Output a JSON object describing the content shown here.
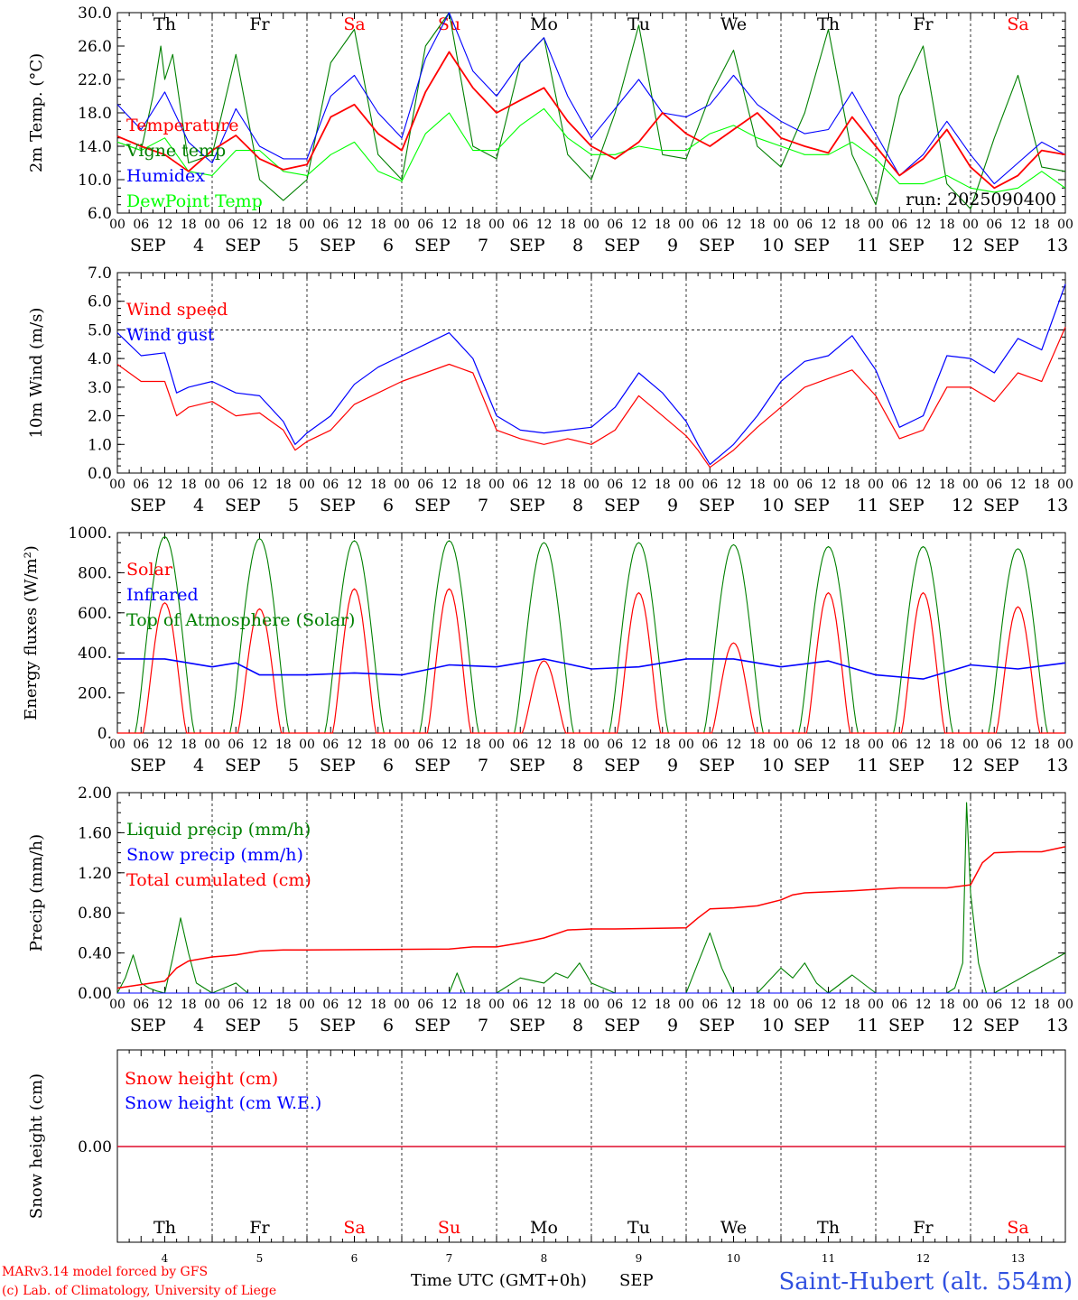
{
  "meridian": {
    "days": [
      "4",
      "5",
      "6",
      "7",
      "8",
      "9",
      "10",
      "11",
      "12",
      "13"
    ],
    "month": "SEP",
    "weekdays": [
      "Th",
      "Fr",
      "Sa",
      "Su",
      "Mo",
      "Tu",
      "We",
      "Th",
      "Fr",
      "Sa"
    ],
    "weekend_index": [
      2,
      3,
      9
    ],
    "hour_ticks": [
      "00",
      "06",
      "12",
      "18"
    ],
    "last_tick": "00"
  },
  "colors": {
    "red": "#ff0000",
    "dark_green": "#008000",
    "blue": "#0000ff",
    "light_green": "#00ff00",
    "frame": "#000000",
    "weekend": "#ff0000",
    "station": "#3050e0"
  },
  "footer": {
    "model": "MARv3.14 model forced by GFS",
    "copyright": "(c) Lab. of Climatology, University of Liege",
    "xlabel": "Time UTC (GMT+0h)",
    "month_label": "SEP",
    "station": "Saint-Hubert (alt. 554m)"
  },
  "chart_data": [
    {
      "id": "temperature",
      "type": "line",
      "ylabel": "2m Temp. (°C)",
      "ylim": [
        6,
        30
      ],
      "yticks": [
        "6.0",
        "10.0",
        "14.0",
        "18.0",
        "22.0",
        "26.0",
        "30.0"
      ],
      "run_label": "run: 2025090400",
      "x_unit": "hours since 4 SEP 00 UTC",
      "series": [
        {
          "name": "Temperature",
          "color": "#ff0000",
          "x": [
            0,
            6,
            12,
            18,
            24,
            30,
            36,
            42,
            48,
            54,
            60,
            66,
            72,
            78,
            84,
            90,
            96,
            102,
            108,
            114,
            120,
            126,
            132,
            138,
            144,
            150,
            156,
            162,
            168,
            174,
            180,
            186,
            192,
            198,
            204,
            210,
            216,
            222,
            228,
            234,
            240
          ],
          "y": [
            15.2,
            14.0,
            13.0,
            11.0,
            13.5,
            15.3,
            12.5,
            11.2,
            11.8,
            17.5,
            19.0,
            15.5,
            13.5,
            20.5,
            25.3,
            21.0,
            18.0,
            19.5,
            21.0,
            17.0,
            14.0,
            12.5,
            14.5,
            18.0,
            15.5,
            14.0,
            16.0,
            18.0,
            15.0,
            14.0,
            13.2,
            17.5,
            14.0,
            10.5,
            12.5,
            16.0,
            11.5,
            9.0,
            10.5,
            13.5,
            13.0
          ]
        },
        {
          "name": "Vigne temp",
          "color": "#008000",
          "x": [
            0,
            6,
            9,
            11,
            12,
            14,
            18,
            24,
            30,
            36,
            42,
            48,
            54,
            60,
            66,
            72,
            78,
            84,
            90,
            96,
            102,
            108,
            114,
            120,
            126,
            132,
            138,
            144,
            150,
            156,
            162,
            168,
            174,
            180,
            186,
            192,
            198,
            204,
            210,
            216,
            222,
            228,
            234,
            240
          ],
          "y": [
            14.5,
            13.5,
            20.0,
            26.0,
            22.0,
            25.0,
            12.0,
            13.0,
            25.0,
            10.0,
            7.5,
            10.0,
            24.0,
            28.0,
            13.0,
            10.0,
            26.0,
            30.0,
            14.0,
            12.5,
            24.0,
            27.0,
            13.0,
            10.0,
            18.0,
            28.5,
            13.0,
            12.5,
            20.0,
            25.5,
            14.0,
            11.5,
            18.0,
            28.0,
            13.0,
            7.0,
            20.0,
            26.0,
            9.5,
            6.5,
            15.0,
            22.5,
            11.5,
            11.0
          ]
        },
        {
          "name": "Humidex",
          "color": "#0000ff",
          "x": [
            0,
            6,
            12,
            18,
            24,
            30,
            36,
            42,
            48,
            54,
            60,
            66,
            72,
            78,
            84,
            90,
            96,
            102,
            108,
            114,
            120,
            126,
            132,
            138,
            144,
            150,
            156,
            162,
            168,
            174,
            180,
            186,
            192,
            198,
            204,
            210,
            216,
            222,
            228,
            234,
            240
          ],
          "y": [
            19.0,
            16.0,
            20.5,
            14.5,
            12.0,
            18.5,
            14.0,
            12.5,
            12.5,
            20.0,
            22.5,
            18.0,
            15.0,
            24.5,
            30.0,
            23.0,
            20.0,
            24.0,
            27.0,
            20.0,
            15.0,
            18.5,
            22.0,
            18.0,
            17.5,
            19.0,
            22.5,
            19.0,
            17.0,
            15.5,
            16.0,
            20.5,
            15.5,
            10.5,
            13.0,
            17.0,
            13.0,
            9.5,
            12.0,
            14.5,
            13.0
          ]
        },
        {
          "name": "DewPoint Temp",
          "color": "#00ff00",
          "x": [
            0,
            6,
            12,
            18,
            24,
            30,
            36,
            42,
            48,
            54,
            60,
            66,
            72,
            78,
            84,
            90,
            96,
            102,
            108,
            114,
            120,
            126,
            132,
            138,
            144,
            150,
            156,
            162,
            168,
            174,
            180,
            186,
            192,
            198,
            204,
            210,
            216,
            222,
            228,
            234,
            240
          ],
          "y": [
            14.5,
            13.5,
            15.0,
            11.0,
            10.5,
            13.5,
            13.5,
            11.0,
            10.5,
            13.0,
            14.5,
            11.0,
            9.8,
            15.5,
            18.0,
            13.5,
            13.5,
            16.5,
            18.5,
            15.0,
            13.0,
            13.0,
            14.0,
            13.5,
            13.5,
            15.5,
            16.5,
            15.0,
            14.0,
            13.0,
            13.0,
            14.5,
            12.5,
            9.5,
            9.5,
            10.5,
            9.0,
            8.5,
            9.0,
            11.0,
            9.0
          ]
        }
      ]
    },
    {
      "id": "wind",
      "type": "line",
      "ylabel": "10m Wind (m/s)",
      "ylim": [
        0,
        7
      ],
      "yticks": [
        "0.0",
        "1.0",
        "2.0",
        "3.0",
        "4.0",
        "5.0",
        "6.0",
        "7.0"
      ],
      "ref_line": 5.0,
      "series": [
        {
          "name": "Wind speed",
          "color": "#ff0000",
          "x": [
            0,
            6,
            12,
            15,
            18,
            24,
            30,
            36,
            42,
            45,
            48,
            54,
            60,
            66,
            72,
            78,
            84,
            90,
            96,
            102,
            108,
            114,
            120,
            126,
            132,
            138,
            144,
            147,
            150,
            156,
            162,
            168,
            174,
            180,
            186,
            192,
            198,
            204,
            210,
            216,
            222,
            228,
            234,
            240
          ],
          "y": [
            3.8,
            3.2,
            3.2,
            2.0,
            2.3,
            2.5,
            2.0,
            2.1,
            1.5,
            0.8,
            1.1,
            1.5,
            2.4,
            2.8,
            3.2,
            3.5,
            3.8,
            3.5,
            1.5,
            1.2,
            1.0,
            1.2,
            1.0,
            1.5,
            2.7,
            2.0,
            1.3,
            0.8,
            0.2,
            0.8,
            1.6,
            2.3,
            3.0,
            3.3,
            3.6,
            2.7,
            1.2,
            1.5,
            3.0,
            3.0,
            2.5,
            3.5,
            3.2,
            5.1
          ]
        },
        {
          "name": "Wind gust",
          "color": "#0000ff",
          "x": [
            0,
            6,
            12,
            15,
            18,
            24,
            30,
            36,
            42,
            45,
            48,
            54,
            60,
            66,
            72,
            78,
            84,
            90,
            96,
            102,
            108,
            114,
            120,
            126,
            132,
            138,
            144,
            147,
            150,
            156,
            162,
            168,
            174,
            180,
            186,
            192,
            198,
            204,
            210,
            216,
            222,
            228,
            234,
            240
          ],
          "y": [
            4.9,
            4.1,
            4.2,
            2.8,
            3.0,
            3.2,
            2.8,
            2.7,
            1.8,
            1.0,
            1.4,
            2.0,
            3.1,
            3.7,
            4.1,
            4.5,
            4.9,
            4.0,
            2.0,
            1.5,
            1.4,
            1.5,
            1.6,
            2.3,
            3.5,
            2.8,
            1.8,
            1.0,
            0.3,
            1.0,
            2.0,
            3.2,
            3.9,
            4.1,
            4.8,
            3.6,
            1.6,
            2.0,
            4.1,
            4.0,
            3.5,
            4.7,
            4.3,
            6.6
          ]
        }
      ]
    },
    {
      "id": "energy",
      "type": "line",
      "ylabel": "Energy fluxes (W/m²)",
      "ylim": [
        0,
        1000
      ],
      "yticks": [
        "0.",
        "200.",
        "400.",
        "600.",
        "800.",
        "1000."
      ],
      "series": [
        {
          "name": "Solar",
          "color": "#ff0000",
          "peaks": [
            650,
            620,
            720,
            720,
            360,
            700,
            450,
            700,
            700,
            630
          ]
        },
        {
          "name": "Infrared",
          "color": "#0000ff",
          "x": [
            0,
            12,
            24,
            30,
            36,
            48,
            60,
            72,
            84,
            96,
            108,
            120,
            132,
            144,
            156,
            168,
            180,
            192,
            204,
            216,
            228,
            240
          ],
          "y": [
            370,
            370,
            330,
            350,
            290,
            290,
            300,
            290,
            340,
            330,
            370,
            320,
            330,
            370,
            370,
            330,
            360,
            290,
            270,
            340,
            320,
            350
          ]
        },
        {
          "name": "Top of Atmosphere (Solar)",
          "color": "#008000",
          "peaks": [
            980,
            970,
            960,
            960,
            950,
            950,
            940,
            930,
            930,
            920
          ]
        }
      ]
    },
    {
      "id": "precip",
      "type": "line",
      "ylabel": "Precip (mm/h)",
      "ylim": [
        0,
        2
      ],
      "yticks": [
        "0.00",
        "0.40",
        "0.80",
        "1.20",
        "1.60",
        "2.00"
      ],
      "series": [
        {
          "name": "Liquid precip (mm/h)",
          "color": "#008000",
          "x": [
            0,
            2,
            4,
            6,
            8,
            10,
            12,
            14,
            16,
            18,
            20,
            22,
            24,
            30,
            33,
            36,
            42,
            48,
            54,
            84,
            86,
            88,
            96,
            102,
            108,
            111,
            114,
            117,
            120,
            126,
            144,
            147,
            150,
            153,
            156,
            162,
            168,
            171,
            174,
            177,
            180,
            186,
            192,
            198,
            204,
            210,
            212,
            214,
            215,
            216,
            218,
            220,
            222,
            240
          ],
          "y": [
            0,
            0.15,
            0.38,
            0.1,
            0.05,
            0.02,
            0.0,
            0.35,
            0.75,
            0.4,
            0.1,
            0.05,
            0.0,
            0.1,
            0.0,
            0.0,
            0.0,
            0.0,
            0.0,
            0.0,
            0.2,
            0.0,
            0.0,
            0.15,
            0.1,
            0.2,
            0.15,
            0.3,
            0.1,
            0.0,
            0.0,
            0.3,
            0.6,
            0.25,
            0.0,
            0.0,
            0.25,
            0.15,
            0.3,
            0.1,
            0.0,
            0.18,
            0.0,
            0.0,
            0.0,
            0.0,
            0.05,
            0.3,
            1.9,
            1.0,
            0.3,
            0.0,
            0.0,
            0.4
          ]
        },
        {
          "name": "Snow precip (mm/h)",
          "color": "#0000ff",
          "x": [
            0,
            240
          ],
          "y": [
            0,
            0
          ]
        },
        {
          "name": "Total cumulated (cm)",
          "color": "#ff0000",
          "x": [
            0,
            12,
            15,
            18,
            24,
            30,
            36,
            42,
            48,
            84,
            90,
            96,
            102,
            108,
            114,
            120,
            126,
            144,
            147,
            150,
            156,
            162,
            168,
            171,
            174,
            180,
            186,
            198,
            210,
            216,
            219,
            222,
            228,
            234,
            240
          ],
          "y": [
            0.05,
            0.12,
            0.25,
            0.32,
            0.36,
            0.38,
            0.42,
            0.43,
            0.43,
            0.44,
            0.46,
            0.46,
            0.5,
            0.55,
            0.63,
            0.64,
            0.64,
            0.65,
            0.75,
            0.84,
            0.85,
            0.87,
            0.93,
            0.98,
            1.0,
            1.01,
            1.02,
            1.05,
            1.05,
            1.08,
            1.3,
            1.4,
            1.41,
            1.41,
            1.46
          ]
        }
      ]
    },
    {
      "id": "snow",
      "type": "line",
      "ylabel": "Snow height (cm)",
      "yticks": [
        "0.00"
      ],
      "series": [
        {
          "name": "Snow height (cm)",
          "color": "#ff0000",
          "x": [
            0,
            240
          ],
          "y": [
            0,
            0
          ]
        },
        {
          "name": "Snow height (cm W.E.)",
          "color": "#0000ff",
          "x": [
            0,
            240
          ],
          "y": [
            0,
            0
          ]
        }
      ]
    }
  ]
}
